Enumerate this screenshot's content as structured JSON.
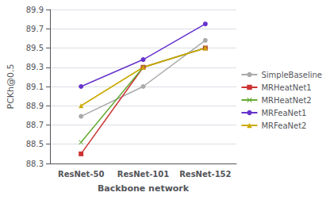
{
  "chart_data": {
    "type": "line",
    "xlabel": "Backbone network",
    "ylabel": "PCKh@0.5",
    "categories": [
      "ResNet-50",
      "ResNet-101",
      "ResNet-152"
    ],
    "series": [
      {
        "name": "SimpleBaseline",
        "color": "#aaaaaa",
        "marker": "circle",
        "values": [
          88.79,
          89.1,
          89.58
        ]
      },
      {
        "name": "MRHeatNet1",
        "color": "#cc3333",
        "marker": "square",
        "values": [
          88.4,
          89.3,
          89.5
        ]
      },
      {
        "name": "MRHeatNet2",
        "color": "#66aa33",
        "marker": "x",
        "values": [
          88.52,
          89.3,
          89.5
        ]
      },
      {
        "name": "MRFeaNet1",
        "color": "#6633cc",
        "marker": "circle",
        "values": [
          89.1,
          89.38,
          89.75
        ]
      },
      {
        "name": "MRFeaNet2",
        "color": "#ccaa00",
        "marker": "triangle",
        "values": [
          88.9,
          89.3,
          89.5
        ]
      }
    ],
    "ylim": [
      88.3,
      89.9
    ],
    "yticks": [
      88.3,
      88.5,
      88.7,
      88.9,
      89.1,
      89.3,
      89.5,
      89.7,
      89.9
    ],
    "grid": true,
    "legend": "right"
  }
}
